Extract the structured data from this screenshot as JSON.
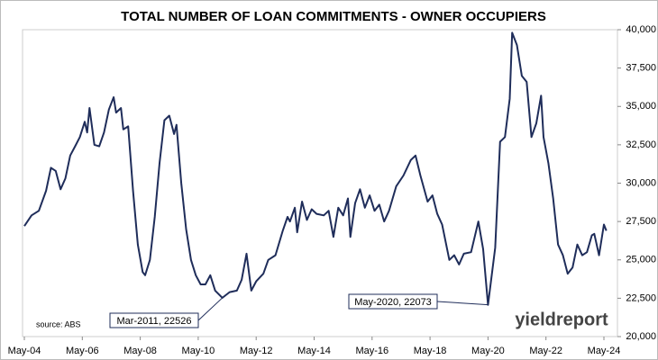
{
  "chart_data": {
    "type": "line",
    "title": "TOTAL NUMBER OF LOAN COMMITMENTS - OWNER OCCUPIERS",
    "source": "source: ABS",
    "logo": "yieldreport",
    "color": "#1f2d5a",
    "yaxis_side": "right",
    "x": [
      "2004-05",
      "2004-08",
      "2004-11",
      "2005-02",
      "2005-04",
      "2005-06",
      "2005-08",
      "2005-10",
      "2005-12",
      "2006-02",
      "2006-04",
      "2006-06",
      "2006-07",
      "2006-08",
      "2006-10",
      "2006-12",
      "2007-02",
      "2007-04",
      "2007-06",
      "2007-07",
      "2007-09",
      "2007-10",
      "2007-12",
      "2008-02",
      "2008-04",
      "2008-06",
      "2008-07",
      "2008-09",
      "2008-11",
      "2009-01",
      "2009-03",
      "2009-05",
      "2009-07",
      "2009-08",
      "2009-10",
      "2009-12",
      "2010-02",
      "2010-04",
      "2010-06",
      "2010-08",
      "2010-10",
      "2010-12",
      "2011-03",
      "2011-06",
      "2011-09",
      "2011-11",
      "2012-01",
      "2012-03",
      "2012-05",
      "2012-08",
      "2012-10",
      "2013-01",
      "2013-04",
      "2013-06",
      "2013-07",
      "2013-09",
      "2013-10",
      "2013-12",
      "2014-02",
      "2014-04",
      "2014-06",
      "2014-09",
      "2014-11",
      "2015-01",
      "2015-03",
      "2015-05",
      "2015-07",
      "2015-08",
      "2015-10",
      "2015-12",
      "2016-02",
      "2016-04",
      "2016-06",
      "2016-08",
      "2016-10",
      "2016-12",
      "2017-03",
      "2017-06",
      "2017-09",
      "2017-11",
      "2018-01",
      "2018-04",
      "2018-06",
      "2018-08",
      "2018-10",
      "2019-01",
      "2019-03",
      "2019-05",
      "2019-07",
      "2019-10",
      "2020-01",
      "2020-03",
      "2020-05",
      "2020-08",
      "2020-10",
      "2020-12",
      "2021-02",
      "2021-03",
      "2021-05",
      "2021-07",
      "2021-09",
      "2021-11",
      "2022-01",
      "2022-03",
      "2022-04",
      "2022-06",
      "2022-08",
      "2022-10",
      "2022-12",
      "2023-02",
      "2023-04",
      "2023-06",
      "2023-08",
      "2023-10",
      "2023-12",
      "2024-01",
      "2024-03",
      "2024-05",
      "2024-06"
    ],
    "values": [
      27200,
      27900,
      28200,
      29500,
      31000,
      30800,
      29600,
      30300,
      31800,
      32400,
      33000,
      34000,
      33300,
      34900,
      32500,
      32400,
      33300,
      34800,
      35600,
      34600,
      34900,
      33500,
      33700,
      29500,
      26000,
      24200,
      24000,
      25000,
      27800,
      31300,
      34100,
      34400,
      33200,
      33800,
      30000,
      27000,
      25000,
      24000,
      23400,
      23400,
      24000,
      23000,
      22526,
      22900,
      23000,
      23700,
      25400,
      23000,
      23600,
      24100,
      25000,
      25300,
      26900,
      27800,
      27500,
      28400,
      26800,
      28800,
      27600,
      28300,
      28000,
      27900,
      28200,
      26500,
      28400,
      27900,
      29000,
      26500,
      28700,
      29600,
      28400,
      29200,
      28200,
      28600,
      27500,
      28200,
      29800,
      30500,
      31500,
      31800,
      30500,
      28800,
      29200,
      28000,
      27300,
      25000,
      25300,
      24700,
      25400,
      25500,
      27500,
      25700,
      22073,
      25800,
      32700,
      33000,
      35500,
      39800,
      39000,
      37000,
      36600,
      33000,
      33900,
      35700,
      33000,
      31300,
      29000,
      26000,
      25300,
      24100,
      24500,
      26000,
      25300,
      25500,
      26600,
      26700,
      25300,
      27300,
      26900
    ],
    "xlim": [
      "2004-05",
      "2024-10"
    ],
    "xticks": [
      {
        "value": "2004-05",
        "label": "May-04"
      },
      {
        "value": "2006-05",
        "label": "May-06"
      },
      {
        "value": "2008-05",
        "label": "May-08"
      },
      {
        "value": "2010-05",
        "label": "May-10"
      },
      {
        "value": "2012-05",
        "label": "May-12"
      },
      {
        "value": "2014-05",
        "label": "May-14"
      },
      {
        "value": "2016-05",
        "label": "May-16"
      },
      {
        "value": "2018-05",
        "label": "May-18"
      },
      {
        "value": "2020-05",
        "label": "May-20"
      },
      {
        "value": "2022-05",
        "label": "May-22"
      },
      {
        "value": "2024-05",
        "label": "May-24"
      }
    ],
    "ylim": [
      20000,
      40000
    ],
    "yticks": [
      {
        "value": 20000,
        "label": "20,000"
      },
      {
        "value": 22500,
        "label": "22,500"
      },
      {
        "value": 25000,
        "label": "25,000"
      },
      {
        "value": 27500,
        "label": "27,500"
      },
      {
        "value": 30000,
        "label": "30,000"
      },
      {
        "value": 32500,
        "label": "32,500"
      },
      {
        "value": 35000,
        "label": "35,000"
      },
      {
        "value": 37500,
        "label": "37,500"
      },
      {
        "value": 40000,
        "label": "40,000"
      }
    ],
    "annotations": [
      {
        "label": "Mar-2011, 22526",
        "x": "2011-03",
        "value": 22526
      },
      {
        "label": "May-2020, 22073",
        "x": "2020-05",
        "value": 22073
      }
    ]
  }
}
